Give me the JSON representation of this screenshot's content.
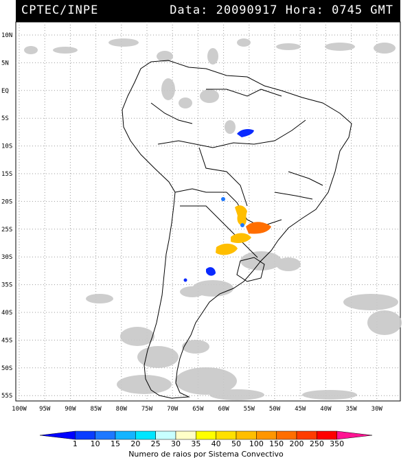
{
  "header": {
    "org": "CPTEC/INPE",
    "date_time": "Data: 20090917 Hora: 0745 GMT"
  },
  "lat_labels": [
    "10N",
    "5N",
    "EQ",
    "5S",
    "10S",
    "15S",
    "20S",
    "25S",
    "30S",
    "35S",
    "40S",
    "45S",
    "50S",
    "55S"
  ],
  "lon_labels": [
    "100W",
    "95W",
    "90W",
    "85W",
    "80W",
    "75W",
    "70W",
    "65W",
    "60W",
    "55W",
    "50W",
    "45W",
    "40W",
    "35W",
    "30W"
  ],
  "colorbar": {
    "ticks": [
      "1",
      "10",
      "15",
      "20",
      "25",
      "30",
      "35",
      "40",
      "50",
      "100",
      "150",
      "200",
      "250",
      "350"
    ],
    "colors": [
      "#0000ff",
      "#0a3cff",
      "#1e78ff",
      "#14b4ff",
      "#00e6ff",
      "#c8ffff",
      "#ffffc8",
      "#ffff00",
      "#ffe000",
      "#ffbe00",
      "#ff9600",
      "#ff6e00",
      "#ff3c00",
      "#ff0000",
      "#ff1493"
    ],
    "caption": "Numero de raios por Sistema Convectivo"
  }
}
